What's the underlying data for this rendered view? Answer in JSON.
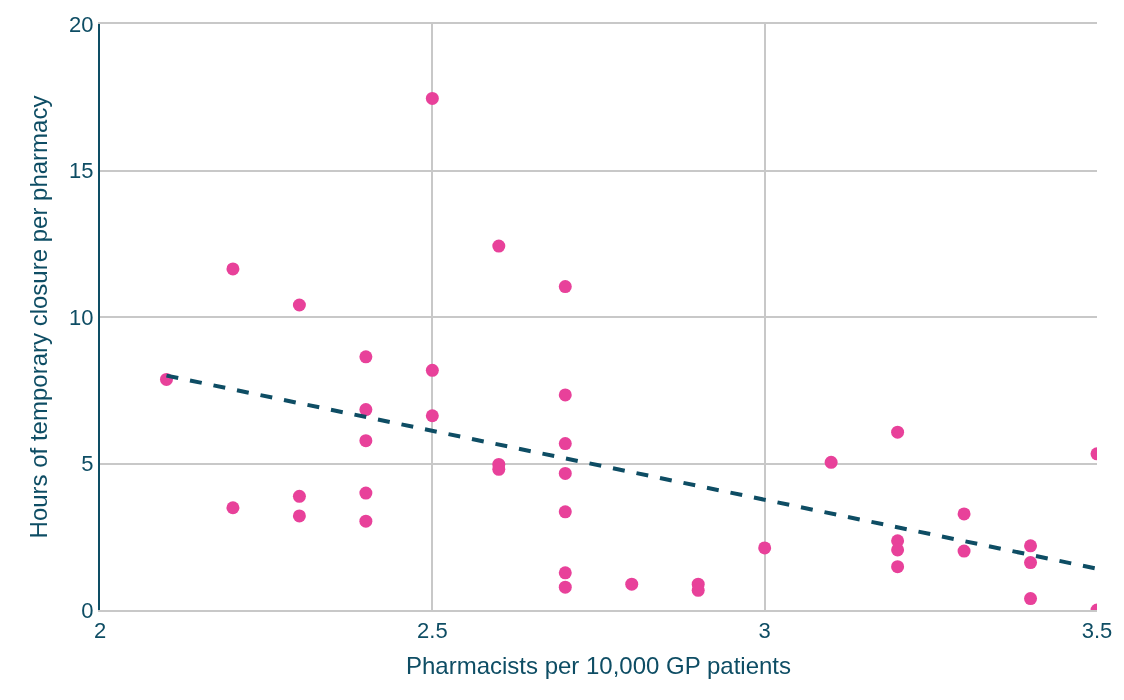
{
  "chart_data": {
    "type": "scatter",
    "xlabel": "Pharmacists per 10,000 GP patients",
    "ylabel": "Hours of temporary closure per pharmacy",
    "xlim": [
      2,
      3.5
    ],
    "xticks": [
      2,
      2.5,
      3,
      3.5
    ],
    "ylim": [
      0,
      20
    ],
    "yticks": [
      0,
      5,
      10,
      15,
      20
    ],
    "grid": true,
    "series": [
      {
        "color": "#e8419a",
        "marker": "circle",
        "x": [
          2.1,
          2.2,
          2.2,
          2.3,
          2.3,
          2.3,
          2.4,
          2.4,
          2.4,
          2.4,
          2.4,
          2.5,
          2.5,
          2.5,
          2.6,
          2.6,
          2.6,
          2.7,
          2.7,
          2.7,
          2.7,
          2.7,
          2.7,
          2.7,
          2.8,
          2.9,
          2.9,
          3.0,
          3.1,
          3.2,
          3.2,
          3.2,
          3.2,
          3.3,
          3.3,
          3.4,
          3.4,
          3.4,
          3.5,
          3.5
        ],
        "values": [
          7.87,
          11.64,
          3.49,
          10.41,
          3.88,
          3.21,
          8.64,
          6.84,
          5.78,
          3.99,
          3.03,
          17.46,
          8.18,
          6.63,
          12.42,
          4.97,
          4.8,
          11.04,
          7.34,
          5.68,
          4.66,
          3.35,
          1.27,
          0.78,
          0.88,
          0.88,
          0.67,
          2.12,
          5.04,
          6.07,
          2.36,
          2.05,
          1.48,
          3.28,
          2.01,
          2.19,
          1.62,
          0.39,
          5.33,
          0
        ]
      },
      {
        "type": "line",
        "color": "#0e4d64",
        "line_style": "dashed",
        "marker": "none",
        "x": [
          2.1,
          3.5
        ],
        "values": [
          8.0,
          1.41
        ]
      }
    ]
  }
}
